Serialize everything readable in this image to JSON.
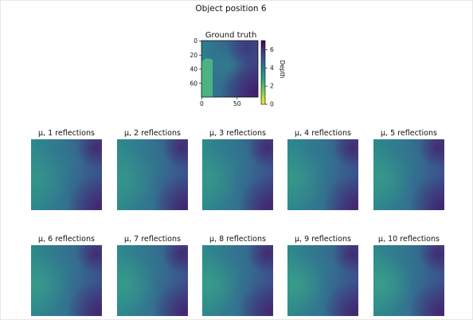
{
  "figure": {
    "title": "Object position 6"
  },
  "chart_data": {
    "type": "heatmap",
    "ground_truth": {
      "title": "Ground truth",
      "x_ticks": [
        "0",
        "50"
      ],
      "y_ticks": [
        "0",
        "20",
        "40",
        "60"
      ],
      "colorbar": {
        "label": "Depth",
        "ticks": [
          "0",
          "2",
          "4",
          "6"
        ],
        "range": [
          0,
          7
        ],
        "colors": [
          "#fde725",
          "#7ad151",
          "#22a884",
          "#2a788e",
          "#414487",
          "#440154"
        ]
      }
    },
    "panels": [
      {
        "title": "μ, 1 reflections"
      },
      {
        "title": "μ, 2 reflections"
      },
      {
        "title": "μ, 3 reflections"
      },
      {
        "title": "μ, 4 reflections"
      },
      {
        "title": "μ, 5 reflections"
      },
      {
        "title": "μ, 6 reflections"
      },
      {
        "title": "μ, 7 reflections"
      },
      {
        "title": "μ, 8 reflections"
      },
      {
        "title": "μ, 9 reflections"
      },
      {
        "title": "μ, 10 reflections"
      }
    ]
  }
}
